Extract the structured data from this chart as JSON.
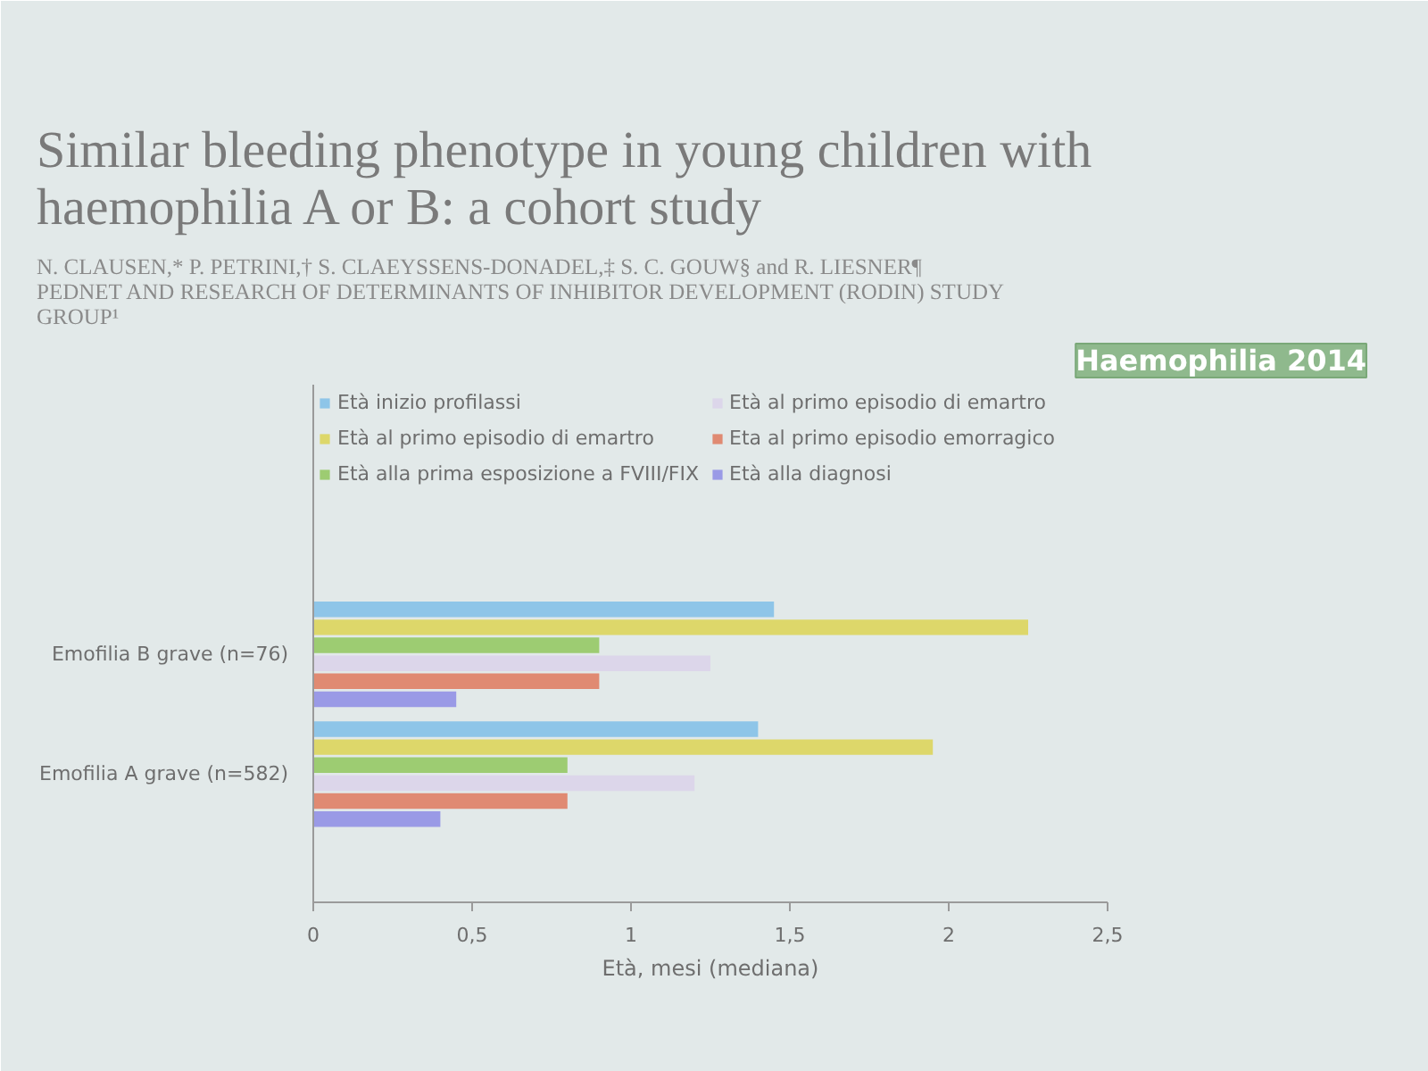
{
  "chart_data": {
    "type": "bar",
    "orientation": "horizontal",
    "title": "Similar bleeding phenotype in young children with haemophilia A or B: a cohort study",
    "subtitle": "N. CLAUSEN,* P. PETRINI,† S. CLAEYSSENS-DONADEL,‡ S. C. GOUW§ and R. LIESNER¶ PEDNET AND RESEARCH OF DETERMINANTS OF INHIBITOR DEVELOPMENT (RODIN) STUDY GROUP¹",
    "xlabel": "Età, mesi (mediana)",
    "annotations": [
      "Haemophilia 2014"
    ],
    "categories": [
      "Emofilia B grave (n=76)",
      "Emofilia A grave (n=582)"
    ],
    "series": [
      {
        "name": "Età inizio profilassi",
        "color": "#8ec5e8",
        "values": [
          1.45,
          1.4
        ]
      },
      {
        "name": "Età al primo episodio di emartro",
        "color": "#ddd76a",
        "values": [
          2.25,
          1.95
        ]
      },
      {
        "name": "Età alla prima esposizione a FVIII/FIX",
        "color": "#9dcc72",
        "values": [
          0.9,
          0.8
        ]
      },
      {
        "name": "Età al primo episodio di emartro",
        "color": "#dcd6ea",
        "values": [
          1.25,
          1.2
        ]
      },
      {
        "name": "Eta al primo episodio emorragico",
        "color": "#e08a72",
        "values": [
          0.9,
          0.8
        ]
      },
      {
        "name": "Età alla diagnosi",
        "color": "#9a9ae6",
        "values": [
          0.45,
          0.4
        ]
      }
    ],
    "xlim": [
      0,
      2.5
    ],
    "xticks": [
      0,
      {
        "value": 0.5,
        "label": "0,5"
      },
      1,
      {
        "value": 1.5,
        "label": "1,5"
      },
      2,
      {
        "value": 2.5,
        "label": "2,5"
      }
    ],
    "grid": false,
    "legend": "top"
  }
}
